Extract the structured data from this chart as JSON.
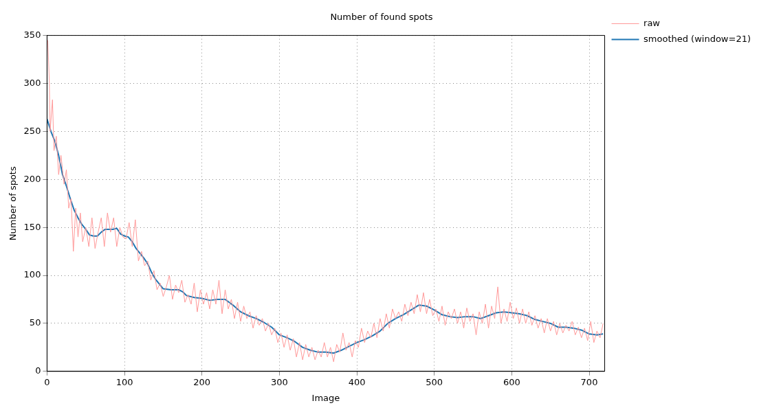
{
  "chart_data": {
    "type": "line",
    "title": "Number of found spots",
    "xlabel": "Image",
    "ylabel": "Number of spots",
    "xlim": [
      0,
      720
    ],
    "xticks": [
      0,
      100,
      200,
      300,
      400,
      500,
      600,
      700
    ],
    "ylim": [
      0,
      350
    ],
    "yticks": [
      0,
      50,
      100,
      150,
      200,
      250,
      300,
      350
    ],
    "grid": true,
    "legend": "top right",
    "marker": "none",
    "line_style": "solid",
    "series": [
      {
        "name": "raw",
        "color": "#ff9999",
        "x": [
          1,
          3,
          4,
          7,
          9,
          12,
          15,
          18,
          22,
          25,
          28,
          31,
          34,
          37,
          40,
          43,
          46,
          50,
          54,
          58,
          62,
          66,
          70,
          74,
          78,
          82,
          86,
          90,
          94,
          98,
          102,
          106,
          110,
          114,
          118,
          122,
          126,
          130,
          134,
          138,
          142,
          146,
          150,
          154,
          158,
          162,
          166,
          170,
          174,
          178,
          182,
          186,
          190,
          194,
          198,
          202,
          206,
          210,
          214,
          218,
          222,
          226,
          230,
          234,
          238,
          242,
          246,
          250,
          254,
          258,
          262,
          266,
          270,
          274,
          278,
          282,
          286,
          290,
          294,
          298,
          302,
          306,
          310,
          314,
          318,
          322,
          326,
          330,
          334,
          338,
          342,
          346,
          350,
          354,
          358,
          362,
          366,
          370,
          374,
          378,
          382,
          386,
          390,
          394,
          398,
          402,
          406,
          410,
          414,
          418,
          422,
          426,
          430,
          434,
          438,
          442,
          446,
          450,
          454,
          458,
          462,
          466,
          470,
          474,
          478,
          482,
          486,
          490,
          494,
          498,
          502,
          506,
          510,
          514,
          518,
          522,
          526,
          530,
          534,
          538,
          542,
          546,
          550,
          554,
          558,
          562,
          566,
          570,
          574,
          578,
          582,
          586,
          590,
          594,
          598,
          602,
          606,
          610,
          614,
          618,
          622,
          626,
          630,
          634,
          638,
          642,
          646,
          650,
          654,
          658,
          662,
          666,
          670,
          674,
          678,
          682,
          686,
          690,
          694,
          698,
          702,
          706,
          710,
          714,
          718
        ],
        "values": [
          345,
          300,
          250,
          283,
          230,
          245,
          205,
          225,
          195,
          210,
          170,
          180,
          125,
          170,
          140,
          165,
          135,
          150,
          130,
          160,
          128,
          145,
          160,
          130,
          165,
          145,
          160,
          130,
          150,
          140,
          138,
          155,
          130,
          158,
          115,
          125,
          110,
          115,
          95,
          105,
          85,
          92,
          78,
          88,
          100,
          75,
          90,
          82,
          95,
          72,
          80,
          70,
          92,
          62,
          85,
          70,
          82,
          65,
          85,
          70,
          95,
          60,
          85,
          65,
          75,
          55,
          72,
          52,
          68,
          55,
          62,
          45,
          58,
          48,
          55,
          42,
          50,
          38,
          45,
          30,
          40,
          25,
          38,
          22,
          34,
          15,
          30,
          12,
          28,
          15,
          25,
          12,
          22,
          15,
          30,
          15,
          25,
          10,
          28,
          20,
          40,
          22,
          30,
          15,
          32,
          25,
          45,
          30,
          42,
          35,
          50,
          35,
          55,
          42,
          60,
          45,
          65,
          55,
          62,
          52,
          70,
          58,
          72,
          60,
          80,
          62,
          82,
          60,
          75,
          58,
          65,
          52,
          68,
          48,
          62,
          55,
          65,
          50,
          62,
          45,
          66,
          52,
          60,
          38,
          62,
          50,
          70,
          45,
          68,
          55,
          88,
          50,
          65,
          52,
          72,
          55,
          66,
          50,
          65,
          50,
          62,
          48,
          58,
          45,
          55,
          40,
          55,
          42,
          52,
          38,
          50,
          40,
          48,
          42,
          52,
          38,
          46,
          35,
          45,
          32,
          52,
          30,
          42,
          35,
          50
        ]
      },
      {
        "name": "smoothed (window=21)",
        "color": "#1f77b4",
        "x": [
          0,
          5,
          10,
          15,
          20,
          25,
          30,
          35,
          40,
          45,
          50,
          55,
          60,
          65,
          70,
          75,
          80,
          85,
          90,
          95,
          100,
          105,
          110,
          115,
          120,
          125,
          130,
          135,
          140,
          145,
          150,
          160,
          170,
          175,
          180,
          190,
          200,
          210,
          220,
          230,
          240,
          250,
          260,
          270,
          280,
          290,
          300,
          310,
          320,
          330,
          340,
          350,
          360,
          370,
          380,
          390,
          400,
          410,
          420,
          430,
          440,
          450,
          460,
          470,
          480,
          490,
          500,
          510,
          520,
          530,
          540,
          550,
          560,
          570,
          580,
          590,
          600,
          610,
          620,
          630,
          640,
          650,
          660,
          670,
          680,
          690,
          700,
          710,
          718
        ],
        "values": [
          263,
          250,
          240,
          225,
          205,
          193,
          180,
          168,
          160,
          153,
          148,
          142,
          141,
          141,
          145,
          148,
          148,
          148,
          149,
          143,
          141,
          140,
          135,
          128,
          123,
          118,
          112,
          103,
          96,
          91,
          86,
          85,
          85,
          83,
          79,
          77,
          76,
          74,
          75,
          75,
          69,
          62,
          58,
          55,
          51,
          46,
          38,
          35,
          31,
          25,
          22,
          20,
          20,
          19,
          22,
          26,
          30,
          33,
          37,
          42,
          50,
          55,
          59,
          64,
          69,
          68,
          64,
          59,
          57,
          56,
          57,
          57,
          55,
          58,
          61,
          62,
          61,
          60,
          58,
          54,
          52,
          50,
          46,
          46,
          45,
          43,
          39,
          38,
          39
        ]
      }
    ]
  }
}
